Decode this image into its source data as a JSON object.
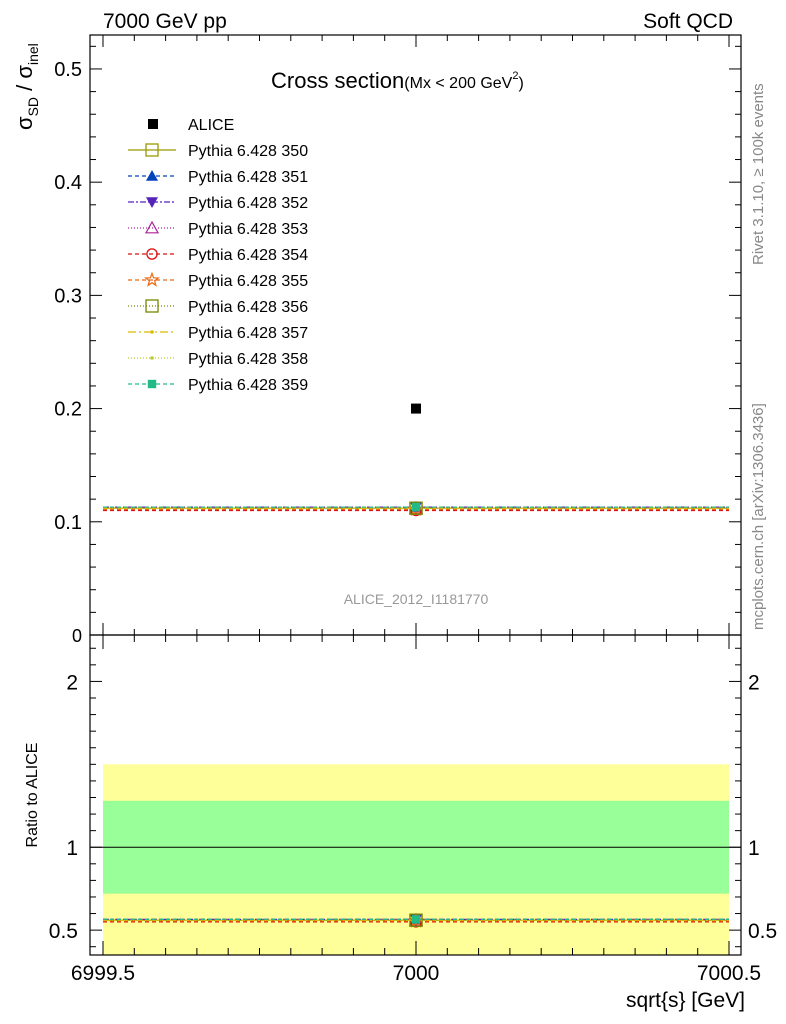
{
  "header": {
    "left": "7000 GeV pp",
    "right": "Soft QCD"
  },
  "side_labels": {
    "rivet": "Rivet 3.1.10, ≥ 100k events",
    "mcplots": "mcplots.cern.ch [arXiv:1306.3436]"
  },
  "chart_data": [
    {
      "type": "scatter",
      "title_main": "Cross section",
      "title_sub": "(Mx < 200 GeV",
      "title_sup": "2",
      "title_close": ")",
      "ylabel_main": "σ",
      "ylabel_sub1": "SD",
      "ylabel_mid": " / σ",
      "ylabel_sub2": "inel",
      "xlim": [
        6999.5,
        7000.5
      ],
      "ylim": [
        0,
        0.53
      ],
      "yticks": [
        {
          "v": 0.1,
          "label": "0.1"
        },
        {
          "v": 0.2,
          "label": "0.2"
        },
        {
          "v": 0.3,
          "label": "0.3"
        },
        {
          "v": 0.4,
          "label": "0.4"
        },
        {
          "v": 0.5,
          "label": "0.5"
        }
      ],
      "y_bottom_label": "0",
      "data_series": {
        "name": "ALICE",
        "x": 7000,
        "y": 0.2
      },
      "series": [
        {
          "name": "Pythia 6.428 350",
          "y": 0.112,
          "color": "#999900",
          "marker": "open-square",
          "dash": ""
        },
        {
          "name": "Pythia 6.428 351",
          "y": 0.113,
          "color": "#0044bb",
          "marker": "filled-triangle-up",
          "dash": "4,3"
        },
        {
          "name": "Pythia 6.428 352",
          "y": 0.113,
          "color": "#5522bb",
          "marker": "filled-triangle-down",
          "dash": "6,2,2,2"
        },
        {
          "name": "Pythia 6.428 353",
          "y": 0.112,
          "color": "#aa2299",
          "marker": "open-triangle-up",
          "dash": "1,2"
        },
        {
          "name": "Pythia 6.428 354",
          "y": 0.11,
          "color": "#dd1111",
          "marker": "open-circle",
          "dash": "4,3"
        },
        {
          "name": "Pythia 6.428 355",
          "y": 0.111,
          "color": "#ee6611",
          "marker": "open-star",
          "dash": "4,3"
        },
        {
          "name": "Pythia 6.428 356",
          "y": 0.112,
          "color": "#778800",
          "marker": "open-square",
          "dash": "1,2"
        },
        {
          "name": "Pythia 6.428 357",
          "y": 0.112,
          "color": "#ddbb00",
          "marker": "small-dot",
          "dash": "8,3,2,3"
        },
        {
          "name": "Pythia 6.428 358",
          "y": 0.112,
          "color": "#bbcc22",
          "marker": "small-dot",
          "dash": "1,2"
        },
        {
          "name": "Pythia 6.428 359",
          "y": 0.113,
          "color": "#22bb88",
          "marker": "filled-square",
          "dash": "4,3"
        }
      ],
      "watermark": "ALICE_2012_I1181770",
      "legend_position": "top-left",
      "grid": false
    },
    {
      "type": "scatter",
      "ylabel": "Ratio to ALICE",
      "xlabel": "sqrt{s} [GeV]",
      "xlim": [
        6999.5,
        7000.5
      ],
      "ylim": [
        0.35,
        2.28
      ],
      "xticks": [
        {
          "v": 6999.5,
          "label": "6999.5"
        },
        {
          "v": 7000,
          "label": "7000"
        },
        {
          "v": 7000.5,
          "label": "7000.5"
        }
      ],
      "yticks": [
        {
          "v": 0.5,
          "label": "0.5"
        },
        {
          "v": 1,
          "label": "1"
        },
        {
          "v": 2,
          "label": "2"
        }
      ],
      "bands": {
        "outer": {
          "lo": 0.35,
          "hi": 1.5,
          "color": "#ffff99"
        },
        "inner": {
          "lo": 0.72,
          "hi": 1.28,
          "color": "#99ff99"
        }
      },
      "reference": 1.0,
      "ratios": [
        0.56,
        0.565,
        0.565,
        0.56,
        0.55,
        0.555,
        0.56,
        0.56,
        0.56,
        0.565
      ]
    }
  ]
}
